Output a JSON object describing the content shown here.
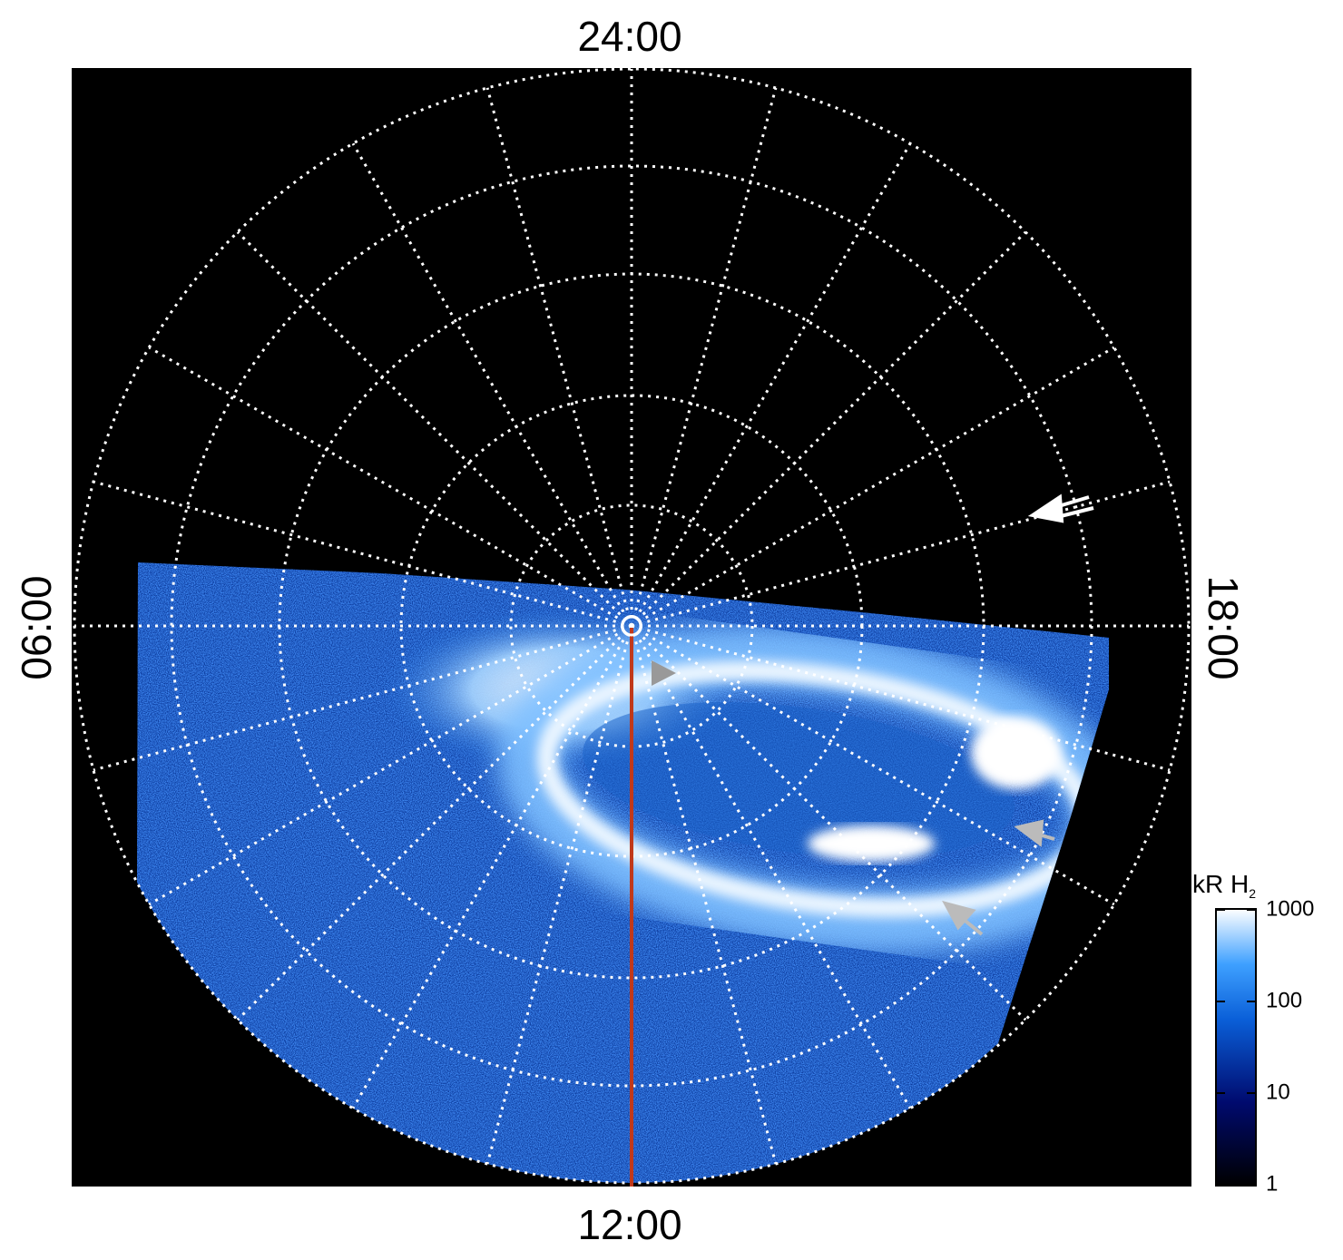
{
  "labels": {
    "top": "24:00",
    "bottom": "12:00",
    "left": "06:00",
    "right": "18:00"
  },
  "colorbar": {
    "title": "kR H",
    "title_subscript": "2",
    "scale": "log",
    "range": [
      1,
      1000
    ],
    "ticks": [
      1,
      10,
      100,
      1000
    ]
  }
}
